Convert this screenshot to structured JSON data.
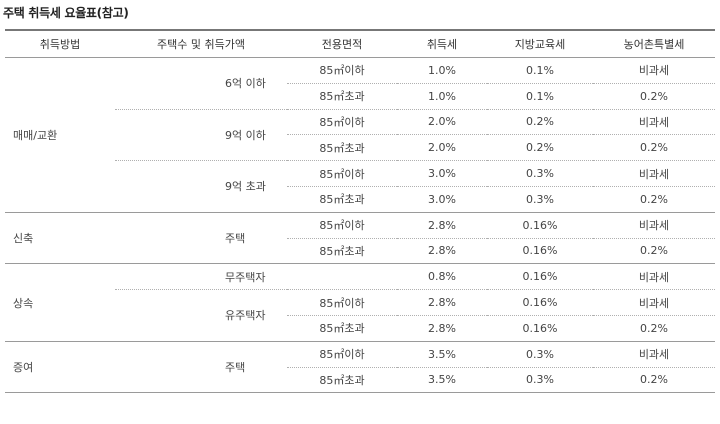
{
  "title": "주택 취득세 요율표(참고)",
  "headers": [
    "취득방법",
    "주택수 및 취득가액",
    "전용면적",
    "취득세",
    "지방교육세",
    "농어촌특별세"
  ],
  "rows": [
    [
      "매매/교환",
      "6억 이하",
      "85㎡이하",
      "1.0%",
      "0.1%",
      "비과세"
    ],
    [
      "",
      "",
      "85㎡초과",
      "1.0%",
      "0.1%",
      "0.2%"
    ],
    [
      "",
      "9억 이하",
      "85㎡이하",
      "2.0%",
      "0.2%",
      "비과세"
    ],
    [
      "",
      "",
      "85㎡초과",
      "2.0%",
      "0.2%",
      "0.2%"
    ],
    [
      "",
      "9억 초과",
      "85㎡이하",
      "3.0%",
      "0.3%",
      "비과세"
    ],
    [
      "",
      "",
      "85㎡초과",
      "3.0%",
      "0.3%",
      "0.2%"
    ],
    [
      "신축",
      "주택",
      "85㎡이하",
      "2.8%",
      "0.16%",
      "비과세"
    ],
    [
      "",
      "",
      "85㎡초과",
      "2.8%",
      "0.16%",
      "0.2%"
    ],
    [
      "상속",
      "무주택자",
      "",
      "0.8%",
      "0.16%",
      "비과세"
    ],
    [
      "",
      "유주택자",
      "85㎡이하",
      "2.8%",
      "0.16%",
      "비과세"
    ],
    [
      "",
      "",
      "85㎡초과",
      "2.8%",
      "0.16%",
      "0.2%"
    ],
    [
      "증여",
      "주택",
      "85㎡이하",
      "3.5%",
      "0.3%",
      "비과세"
    ],
    [
      "",
      "",
      "85㎡초과",
      "3.5%",
      "0.3%",
      "0.2%"
    ]
  ]
}
